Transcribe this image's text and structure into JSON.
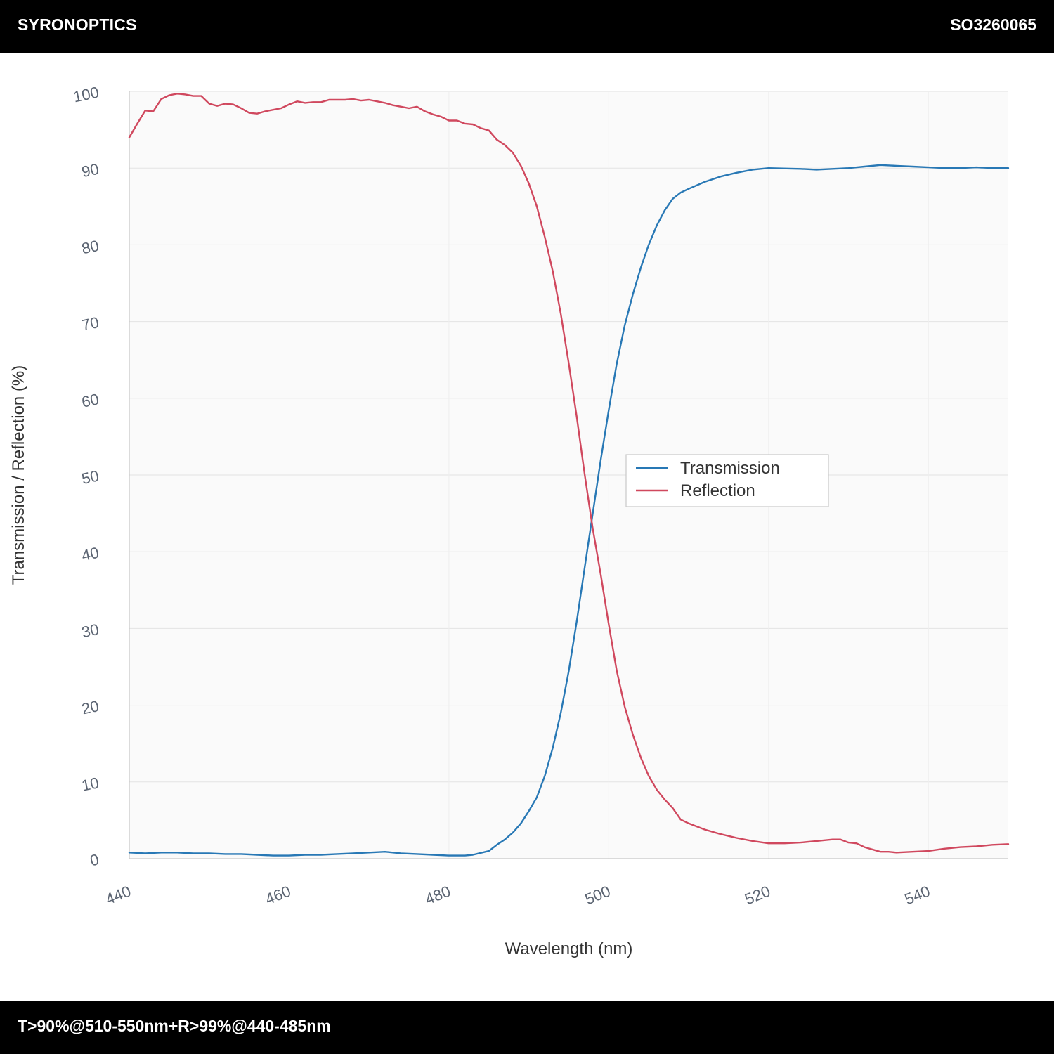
{
  "header": {
    "brand": "SYRONOPTICS",
    "part_number": "SO3260065"
  },
  "footer": {
    "spec": "T>90%@510-550nm+R>99%@440-485nm"
  },
  "chart_data": {
    "type": "line",
    "xlabel": "Wavelength (nm)",
    "ylabel": "Transmission / Reflection (%)",
    "xlim": [
      440,
      550
    ],
    "ylim": [
      0,
      100
    ],
    "x_ticks": [
      440,
      460,
      480,
      500,
      520,
      540
    ],
    "y_ticks": [
      0,
      10,
      20,
      30,
      40,
      50,
      60,
      70,
      80,
      90,
      100
    ],
    "grid": true,
    "legend_position": "center-right",
    "series": [
      {
        "name": "Transmission",
        "color": "#2878b5",
        "points": [
          [
            440,
            0.8
          ],
          [
            442,
            0.7
          ],
          [
            444,
            0.8
          ],
          [
            446,
            0.8
          ],
          [
            448,
            0.7
          ],
          [
            450,
            0.7
          ],
          [
            452,
            0.6
          ],
          [
            454,
            0.6
          ],
          [
            456,
            0.5
          ],
          [
            458,
            0.4
          ],
          [
            460,
            0.4
          ],
          [
            462,
            0.5
          ],
          [
            464,
            0.5
          ],
          [
            466,
            0.6
          ],
          [
            468,
            0.7
          ],
          [
            470,
            0.8
          ],
          [
            472,
            0.9
          ],
          [
            474,
            0.7
          ],
          [
            476,
            0.6
          ],
          [
            478,
            0.5
          ],
          [
            480,
            0.4
          ],
          [
            482,
            0.4
          ],
          [
            483,
            0.5
          ],
          [
            485,
            1.0
          ],
          [
            486,
            1.8
          ],
          [
            487,
            2.5
          ],
          [
            488,
            3.4
          ],
          [
            489,
            4.6
          ],
          [
            490,
            6.2
          ],
          [
            491,
            8.0
          ],
          [
            492,
            10.8
          ],
          [
            493,
            14.5
          ],
          [
            494,
            19.0
          ],
          [
            495,
            24.5
          ],
          [
            496,
            31.0
          ],
          [
            497,
            38.0
          ],
          [
            498,
            45.0
          ],
          [
            499,
            52.0
          ],
          [
            500,
            58.5
          ],
          [
            501,
            64.5
          ],
          [
            502,
            69.5
          ],
          [
            503,
            73.5
          ],
          [
            504,
            77.0
          ],
          [
            505,
            80.0
          ],
          [
            506,
            82.5
          ],
          [
            507,
            84.5
          ],
          [
            508,
            86.0
          ],
          [
            509,
            86.8
          ],
          [
            510,
            87.3
          ],
          [
            512,
            88.2
          ],
          [
            514,
            88.9
          ],
          [
            516,
            89.4
          ],
          [
            518,
            89.8
          ],
          [
            520,
            90.0
          ],
          [
            524,
            89.9
          ],
          [
            526,
            89.8
          ],
          [
            528,
            89.9
          ],
          [
            530,
            90.0
          ],
          [
            532,
            90.2
          ],
          [
            534,
            90.4
          ],
          [
            536,
            90.3
          ],
          [
            538,
            90.2
          ],
          [
            540,
            90.1
          ],
          [
            542,
            90.0
          ],
          [
            544,
            90.0
          ],
          [
            546,
            90.1
          ],
          [
            548,
            90.0
          ],
          [
            550,
            90.0
          ]
        ]
      },
      {
        "name": "Reflection",
        "color": "#d0485e",
        "points": [
          [
            440,
            94.0
          ],
          [
            441,
            95.8
          ],
          [
            442,
            97.5
          ],
          [
            443,
            97.4
          ],
          [
            444,
            99.0
          ],
          [
            445,
            99.5
          ],
          [
            446,
            99.7
          ],
          [
            447,
            99.6
          ],
          [
            448,
            99.4
          ],
          [
            449,
            99.4
          ],
          [
            450,
            98.4
          ],
          [
            451,
            98.1
          ],
          [
            452,
            98.4
          ],
          [
            453,
            98.3
          ],
          [
            454,
            97.8
          ],
          [
            455,
            97.2
          ],
          [
            456,
            97.1
          ],
          [
            457,
            97.4
          ],
          [
            458,
            97.6
          ],
          [
            459,
            97.8
          ],
          [
            460,
            98.3
          ],
          [
            461,
            98.7
          ],
          [
            462,
            98.5
          ],
          [
            463,
            98.6
          ],
          [
            464,
            98.6
          ],
          [
            465,
            98.9
          ],
          [
            466,
            98.9
          ],
          [
            467,
            98.9
          ],
          [
            468,
            99.0
          ],
          [
            469,
            98.8
          ],
          [
            470,
            98.9
          ],
          [
            471,
            98.7
          ],
          [
            472,
            98.5
          ],
          [
            473,
            98.2
          ],
          [
            474,
            98.0
          ],
          [
            475,
            97.8
          ],
          [
            476,
            98.0
          ],
          [
            477,
            97.4
          ],
          [
            478,
            97.0
          ],
          [
            479,
            96.7
          ],
          [
            480,
            96.2
          ],
          [
            481,
            96.2
          ],
          [
            482,
            95.8
          ],
          [
            483,
            95.7
          ],
          [
            484,
            95.2
          ],
          [
            485,
            94.9
          ],
          [
            486,
            93.7
          ],
          [
            487,
            93.0
          ],
          [
            488,
            92.0
          ],
          [
            489,
            90.3
          ],
          [
            490,
            88.0
          ],
          [
            491,
            85.0
          ],
          [
            492,
            81.0
          ],
          [
            493,
            76.5
          ],
          [
            494,
            71.0
          ],
          [
            495,
            64.5
          ],
          [
            496,
            57.5
          ],
          [
            497,
            50.0
          ],
          [
            498,
            43.0
          ],
          [
            499,
            37.0
          ],
          [
            500,
            30.5
          ],
          [
            501,
            24.5
          ],
          [
            502,
            19.8
          ],
          [
            503,
            16.2
          ],
          [
            504,
            13.2
          ],
          [
            505,
            10.8
          ],
          [
            506,
            9.0
          ],
          [
            507,
            7.7
          ],
          [
            508,
            6.6
          ],
          [
            509,
            5.1
          ],
          [
            510,
            4.6
          ],
          [
            512,
            3.8
          ],
          [
            514,
            3.2
          ],
          [
            516,
            2.7
          ],
          [
            518,
            2.3
          ],
          [
            520,
            2.0
          ],
          [
            522,
            2.0
          ],
          [
            524,
            2.1
          ],
          [
            526,
            2.3
          ],
          [
            528,
            2.5
          ],
          [
            529,
            2.5
          ],
          [
            530,
            2.1
          ],
          [
            531,
            2.0
          ],
          [
            532,
            1.5
          ],
          [
            534,
            0.9
          ],
          [
            535,
            0.9
          ],
          [
            536,
            0.8
          ],
          [
            538,
            0.9
          ],
          [
            540,
            1.0
          ],
          [
            542,
            1.3
          ],
          [
            544,
            1.5
          ],
          [
            546,
            1.6
          ],
          [
            548,
            1.8
          ],
          [
            550,
            1.9
          ]
        ]
      }
    ]
  }
}
